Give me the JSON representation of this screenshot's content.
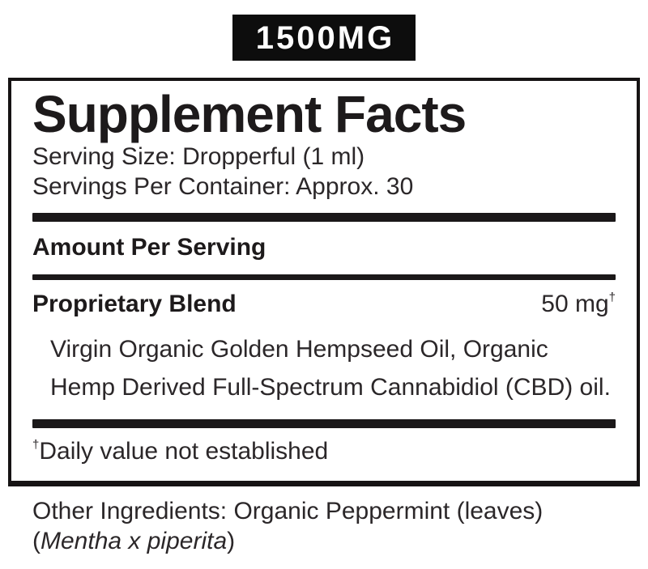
{
  "badge": {
    "text": "1500MG",
    "bg_color": "#0d0d0d",
    "text_color": "#ffffff"
  },
  "panel": {
    "title": "Supplement Facts",
    "serving_size": "Serving Size: Dropperful (1 ml)",
    "servings_per_container": "Servings Per Container: Approx. 30",
    "amount_per_serving_heading": "Amount Per Serving",
    "blend": {
      "name": "Proprietary Blend",
      "amount": "50 mg",
      "footnote_symbol": "†"
    },
    "ingredient_line1": "Virgin Organic Golden Hempseed Oil, Organic",
    "ingredient_line2": "Hemp Derived Full-Spectrum Cannabidiol (CBD) oil.",
    "footnote": {
      "symbol": "†",
      "text": "Daily value not established"
    }
  },
  "other_ingredients": {
    "line1": "Other Ingredients: Organic Peppermint (leaves)",
    "latin_open_paren": "(",
    "latin_name": "Mentha x piperita",
    "latin_close_paren": ")"
  },
  "colors": {
    "body_text": "#2b2729",
    "heading_text": "#1d1a1b",
    "bar": "#1b1819",
    "panel_border": "#161314",
    "background": "#ffffff"
  }
}
